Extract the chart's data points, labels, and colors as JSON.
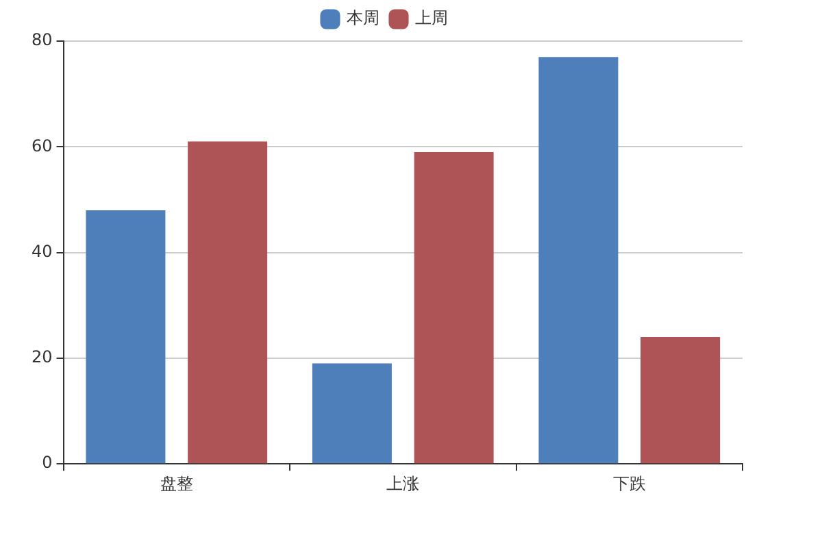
{
  "chart_data": {
    "type": "bar",
    "categories": [
      "盘整",
      "上涨",
      "下跌"
    ],
    "series": [
      {
        "name": "本周",
        "color": "#4e7fbb",
        "values": [
          48,
          19,
          77
        ]
      },
      {
        "name": "上周",
        "color": "#ae5456",
        "values": [
          61,
          59,
          24
        ]
      }
    ],
    "ylim": [
      0,
      80
    ],
    "yticks": [
      0,
      20,
      40,
      60,
      80
    ],
    "grid": "y",
    "legend": "top"
  }
}
